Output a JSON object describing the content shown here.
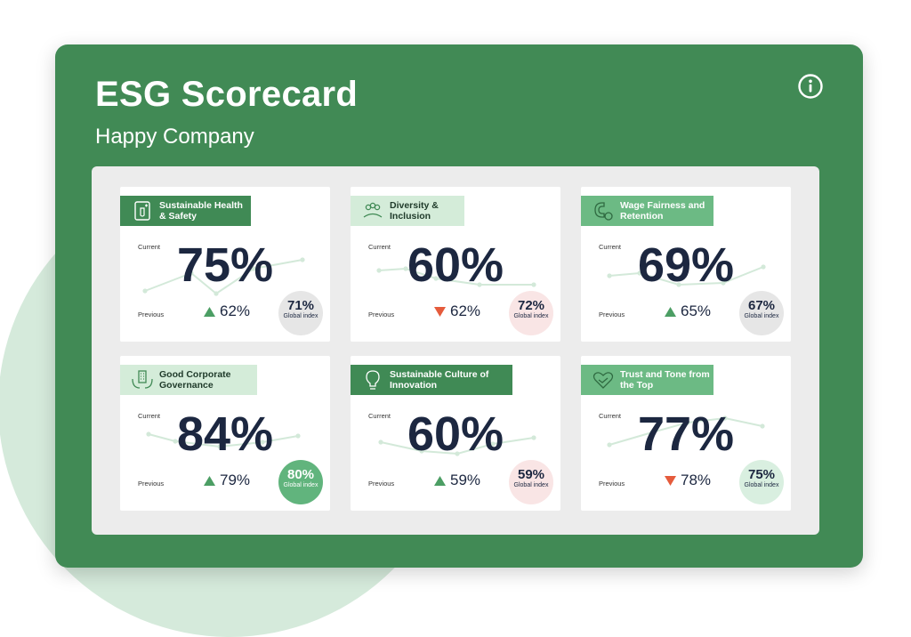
{
  "header": {
    "title": "ESG Scorecard",
    "subtitle": "Happy Company",
    "info_icon": "info-circle-icon"
  },
  "colors": {
    "panel": "#418a55",
    "up": "#4c9e64",
    "down": "#e55b3c",
    "value_text": "#1c2740"
  },
  "cards": [
    {
      "tag": "Sustainable Health & Safety",
      "tag_style": "dark",
      "icon": "health-safety-icon",
      "current_label": "Current",
      "current": "75%",
      "previous_label": "Previous",
      "previous": "62%",
      "trend": "up",
      "global_value": "71%",
      "global_label": "Global index",
      "global_style": "grey"
    },
    {
      "tag": "Diversity & Inclusion",
      "tag_style": "light",
      "icon": "people-group-icon",
      "current_label": "Current",
      "current": "60%",
      "previous_label": "Previous",
      "previous": "62%",
      "trend": "down",
      "global_value": "72%",
      "global_label": "Global index",
      "global_style": "pink"
    },
    {
      "tag": "Wage Fairness and Retention",
      "tag_style": "mid",
      "icon": "magnet-coin-icon",
      "current_label": "Current",
      "current": "69%",
      "previous_label": "Previous",
      "previous": "65%",
      "trend": "up",
      "global_value": "67%",
      "global_label": "Global index",
      "global_style": "grey"
    },
    {
      "tag": "Good Corporate Governance",
      "tag_style": "light",
      "icon": "building-hands-icon",
      "current_label": "Current",
      "current": "84%",
      "previous_label": "Previous",
      "previous": "79%",
      "trend": "up",
      "global_value": "80%",
      "global_label": "Global index",
      "global_style": "green"
    },
    {
      "tag": "Sustainable Culture of Innovation",
      "tag_style": "dark",
      "icon": "lightbulb-icon",
      "current_label": "Current",
      "current": "60%",
      "previous_label": "Previous",
      "previous": "59%",
      "trend": "up",
      "global_value": "59%",
      "global_label": "Global index",
      "global_style": "pink"
    },
    {
      "tag": "Trust and Tone from the Top",
      "tag_style": "mid",
      "icon": "handshake-heart-icon",
      "current_label": "Current",
      "current": "77%",
      "previous_label": "Previous",
      "previous": "78%",
      "trend": "down",
      "global_value": "75%",
      "global_label": "Global index",
      "global_style": "mint"
    }
  ]
}
